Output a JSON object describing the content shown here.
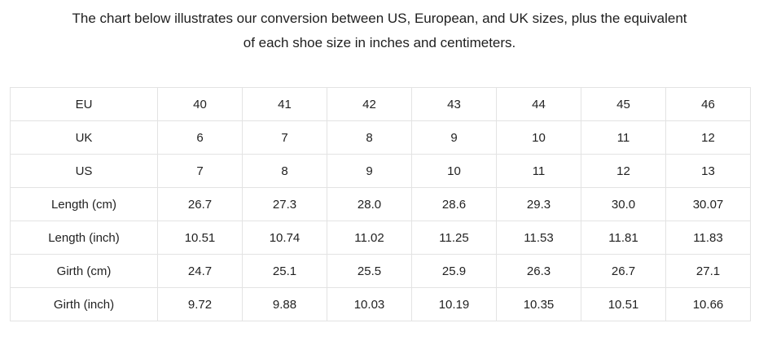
{
  "title": {
    "line1": "The chart below illustrates our conversion between US, European, and UK sizes, plus the equivalent",
    "line2": "of each shoe size in inches and centimeters."
  },
  "colors": {
    "background": "#ffffff",
    "table_border": "#e3e3e3",
    "text": "#222222"
  },
  "chart_data": {
    "type": "table",
    "title": "Shoe size conversion chart (US / EU / UK with length and girth equivalents)",
    "rows": [
      {
        "label": "EU",
        "values": [
          "40",
          "41",
          "42",
          "43",
          "44",
          "45",
          "46"
        ]
      },
      {
        "label": "UK",
        "values": [
          "6",
          "7",
          "8",
          "9",
          "10",
          "11",
          "12"
        ]
      },
      {
        "label": "US",
        "values": [
          "7",
          "8",
          "9",
          "10",
          "11",
          "12",
          "13"
        ]
      },
      {
        "label": "Length (cm)",
        "values": [
          "26.7",
          "27.3",
          "28.0",
          "28.6",
          "29.3",
          "30.0",
          "30.07"
        ]
      },
      {
        "label": "Length (inch)",
        "values": [
          "10.51",
          "10.74",
          "11.02",
          "11.25",
          "11.53",
          "11.81",
          "11.83"
        ]
      },
      {
        "label": "Girth (cm)",
        "values": [
          "24.7",
          "25.1",
          "25.5",
          "25.9",
          "26.3",
          "26.7",
          "27.1"
        ]
      },
      {
        "label": "Girth (inch)",
        "values": [
          "9.72",
          "9.88",
          "10.03",
          "10.19",
          "10.35",
          "10.51",
          "10.66"
        ]
      }
    ]
  }
}
